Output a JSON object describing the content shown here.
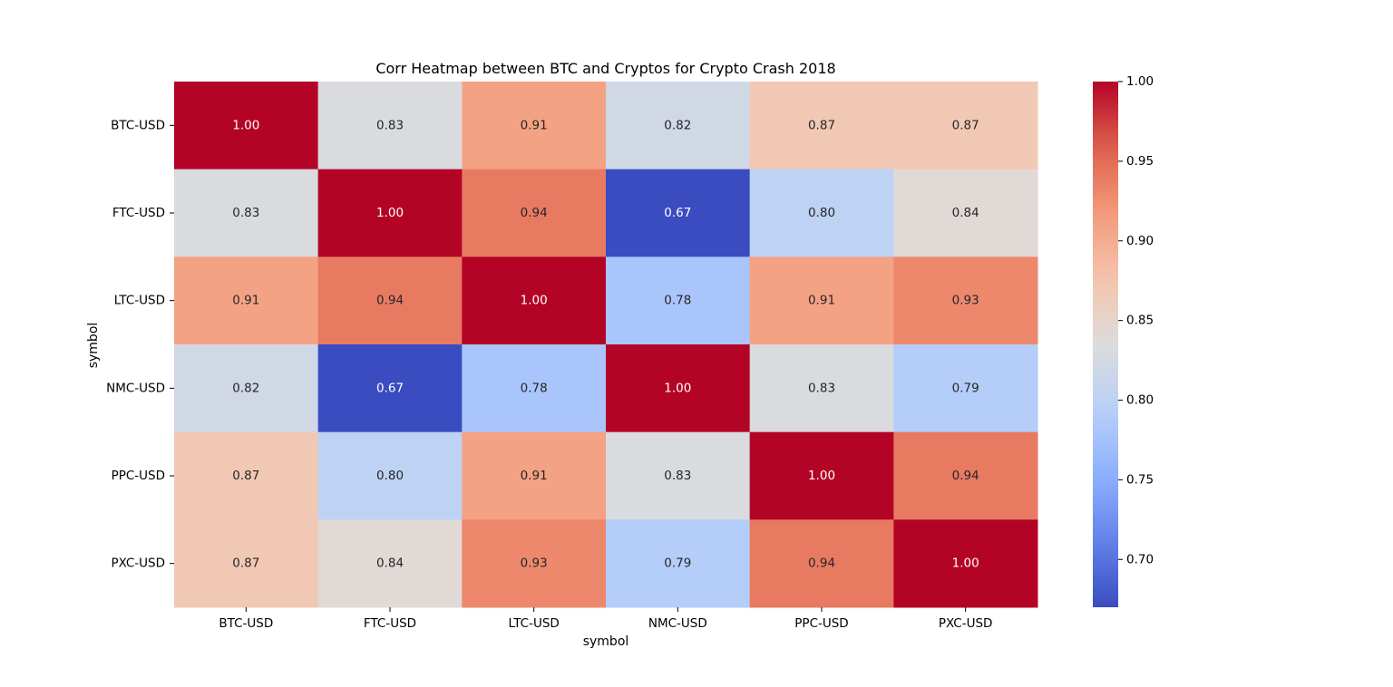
{
  "chart_data": {
    "type": "heatmap",
    "title": "Corr Heatmap between BTC and Cryptos for Crypto Crash 2018",
    "xlabel": "symbol",
    "ylabel": "symbol",
    "x_categories": [
      "BTC-USD",
      "FTC-USD",
      "LTC-USD",
      "NMC-USD",
      "PPC-USD",
      "PXC-USD"
    ],
    "y_categories": [
      "BTC-USD",
      "FTC-USD",
      "LTC-USD",
      "NMC-USD",
      "PPC-USD",
      "PXC-USD"
    ],
    "values": [
      [
        1.0,
        0.83,
        0.91,
        0.82,
        0.87,
        0.87
      ],
      [
        0.83,
        1.0,
        0.94,
        0.67,
        0.8,
        0.84
      ],
      [
        0.91,
        0.94,
        1.0,
        0.78,
        0.91,
        0.93
      ],
      [
        0.82,
        0.67,
        0.78,
        1.0,
        0.83,
        0.79
      ],
      [
        0.87,
        0.8,
        0.91,
        0.83,
        1.0,
        0.94
      ],
      [
        0.87,
        0.84,
        0.93,
        0.79,
        0.94,
        1.0
      ]
    ],
    "value_format": "0.00",
    "colormap": "coolwarm",
    "vmin": 0.67,
    "vmax": 1.0,
    "colorbar_ticks": [
      "0.70",
      "0.75",
      "0.80",
      "0.85",
      "0.90",
      "0.95",
      "1.00"
    ],
    "colors": {
      "low": "#3b4cc0",
      "mid": "#dddcdb",
      "high": "#b40426"
    }
  }
}
